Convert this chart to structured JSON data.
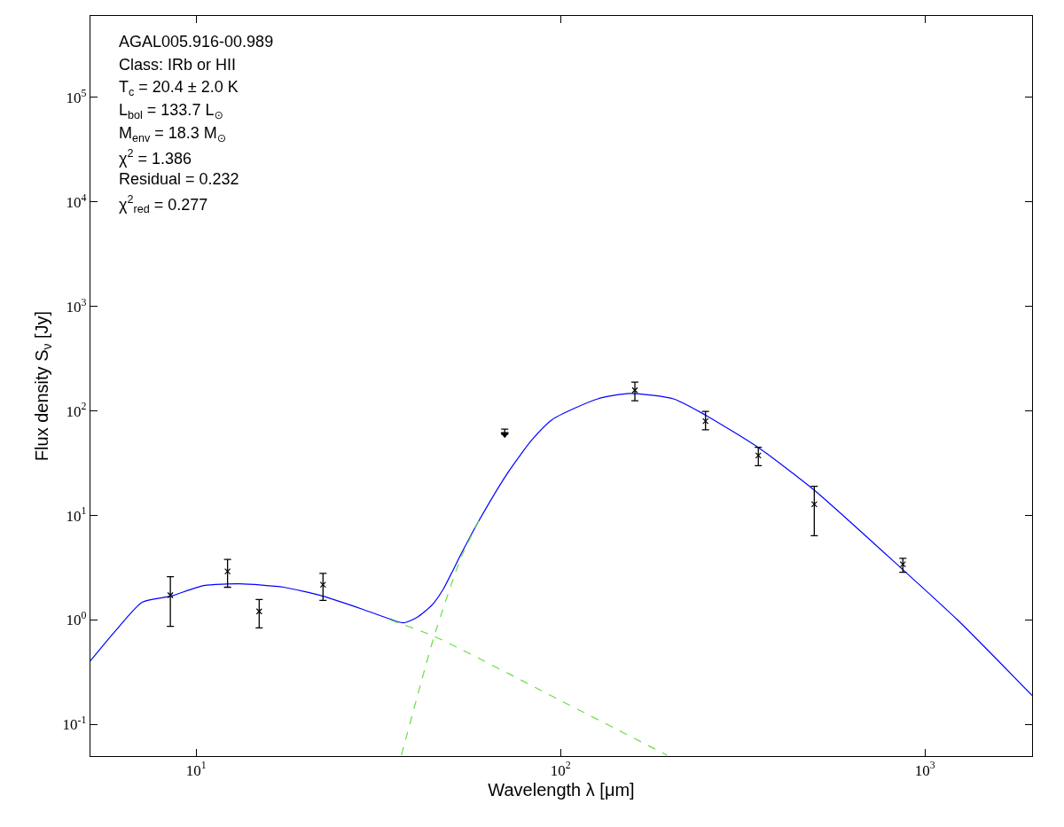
{
  "chart_data": {
    "type": "scatter",
    "xlabel": "Wavelength λ [μm]",
    "ylabel": "Flux density S$_{ν}$ [Jy]",
    "log": "xy",
    "grid": false,
    "xlim": [
      5.13,
      1968
    ],
    "ylim": [
      0.05,
      600000
    ],
    "xticks": [
      {
        "value": 10,
        "label": "10$^{1}$"
      },
      {
        "value": 100,
        "label": "10$^{2}$"
      },
      {
        "value": 1000,
        "label": "10$^{3}$"
      }
    ],
    "yticks": [
      {
        "value": 0.1,
        "label": "10$^{-1}$"
      },
      {
        "value": 1,
        "label": "10$^{0}$"
      },
      {
        "value": 10,
        "label": "10$^{1}$"
      },
      {
        "value": 100,
        "label": "10$^{2}$"
      },
      {
        "value": 1000,
        "label": "10$^{3}$"
      },
      {
        "value": 10000,
        "label": "10$^{4}$"
      },
      {
        "value": 100000,
        "label": "10$^{5}$"
      }
    ],
    "annotations": [
      "AGAL005.916-00.989",
      "Class: IRb or HII",
      "T$_{c}$ = 20.4 ± 2.0 K",
      "L$_{bol}$ = 133.7 L$_{⊙}$",
      "M$_{env}$ = 18.3 M$_{⊙}$",
      "χ$^{2}$ = 1.386",
      "Residual = 0.232",
      "χ$^{2}$$_{red}$ = 0.277"
    ],
    "series": [
      {
        "type": "line",
        "color": "#0000ff",
        "line_style": "solid",
        "marker": "none",
        "x": [
          5.13,
          6.01,
          7.11,
          8.5,
          10.5,
          13.2,
          17.4,
          22.3,
          28.8,
          34.1,
          37.1,
          40.4,
          44.4,
          47.7,
          53.4,
          59.7,
          71.8,
          83.5,
          95,
          126,
          155,
          205,
          249,
          349,
          497,
          859,
          1230,
          1968
        ],
        "values": [
          0.408,
          0.79,
          1.48,
          1.69,
          2.14,
          2.22,
          2.06,
          1.69,
          1.26,
          1.02,
          0.94,
          1.06,
          1.39,
          1.98,
          4.3,
          8.9,
          25.9,
          53,
          83,
          130,
          147,
          130,
          92,
          44.7,
          17.5,
          3.16,
          1.0,
          0.19
        ]
      },
      {
        "type": "line",
        "color": "#66dd44",
        "line_style": "dashed",
        "marker": "none",
        "x": [
          34.1,
          45,
          100,
          196
        ],
        "values": [
          1.0,
          0.7,
          0.17,
          0.051
        ]
      },
      {
        "type": "line",
        "color": "#66dd44",
        "line_style": "dashed",
        "marker": "none",
        "x": [
          36.6,
          45,
          53.4,
          59.7
        ],
        "values": [
          0.051,
          0.7,
          4.0,
          8.9
        ]
      },
      {
        "color": "#000000",
        "marker": "cross",
        "x": [
          8.5,
          12.2,
          14.9,
          22.3,
          160,
          250,
          349,
          497,
          870
        ],
        "values": [
          1.73,
          2.92,
          1.21,
          2.18,
          158,
          80,
          37.5,
          12.8,
          3.41
        ],
        "errors": [
          [
            0.87,
            2.6
          ],
          [
            2.06,
            3.8
          ],
          [
            0.84,
            1.57
          ],
          [
            1.54,
            2.8
          ],
          [
            125,
            189
          ],
          [
            66,
            99
          ],
          [
            30,
            45
          ],
          [
            6.4,
            19
          ],
          [
            2.86,
            3.9
          ]
        ]
      },
      {
        "color": "#000000",
        "marker": "triangle",
        "x": [
          70.3
        ],
        "values": [
          60
        ],
        "errors": [
          [
            60,
            67
          ]
        ]
      }
    ]
  }
}
